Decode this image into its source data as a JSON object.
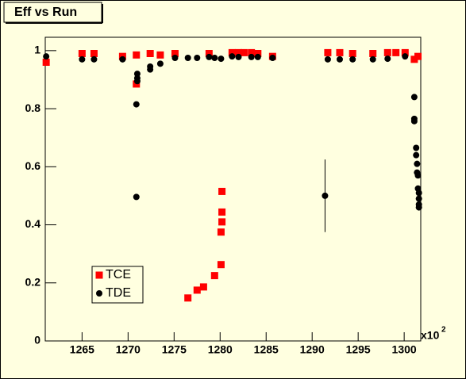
{
  "chart_data": {
    "type": "scatter",
    "title": "Eff vs Run",
    "x_label": "x10",
    "x_label_sup": "2",
    "xlim": [
      1261,
      1301.8
    ],
    "ylim": [
      0,
      1.046
    ],
    "xticks": [
      1265,
      1270,
      1275,
      1280,
      1285,
      1290,
      1295,
      1300
    ],
    "yticks": [
      0,
      0.2,
      0.4,
      0.6,
      0.8,
      1
    ],
    "legend": "lower-left",
    "series": [
      {
        "name": "TCE",
        "color": "#ff0000",
        "marker": "square",
        "x": [
          1261.1,
          1265.0,
          1266.3,
          1269.4,
          1270.9,
          1270.9,
          1272.4,
          1273.5,
          1275.1,
          1276.5,
          1277.5,
          1278.2,
          1278.8,
          1279.4,
          1280.1,
          1280.1,
          1280.2,
          1280.2,
          1280.2,
          1281.3,
          1282.0,
          1282.6,
          1283.4,
          1284.1,
          1285.7,
          1291.7,
          1293.0,
          1294.4,
          1296.6,
          1298.2,
          1299.1,
          1300.1,
          1301.1,
          1301.5
        ],
        "values": [
          0.96,
          0.99,
          0.99,
          0.98,
          0.985,
          0.885,
          0.99,
          0.985,
          0.99,
          0.148,
          0.175,
          0.186,
          0.99,
          0.225,
          0.263,
          0.375,
          0.41,
          0.444,
          0.515,
          0.993,
          0.993,
          0.993,
          0.993,
          0.99,
          0.98,
          0.993,
          0.993,
          0.99,
          0.99,
          0.993,
          0.993,
          0.993,
          0.97,
          0.98
        ]
      },
      {
        "name": "TDE",
        "color": "#000000",
        "marker": "circle",
        "x": [
          1261.1,
          1265.0,
          1266.3,
          1269.4,
          1270.9,
          1270.9,
          1271.0,
          1271.0,
          1271.0,
          1272.4,
          1272.4,
          1273.5,
          1275.1,
          1276.5,
          1277.5,
          1278.8,
          1279.4,
          1280.1,
          1281.3,
          1282.0,
          1283.4,
          1284.1,
          1285.7,
          1291.4,
          1291.7,
          1293.0,
          1294.4,
          1296.6,
          1298.2,
          1300.1,
          1301.1,
          1301.1,
          1301.1,
          1301.3,
          1301.3,
          1301.4,
          1301.4,
          1301.5,
          1301.5,
          1301.6,
          1301.6,
          1301.6,
          1301.6
        ],
        "values": [
          0.98,
          0.97,
          0.97,
          0.97,
          0.815,
          0.496,
          0.92,
          0.905,
          0.895,
          0.945,
          0.935,
          0.955,
          0.975,
          0.975,
          0.975,
          0.978,
          0.975,
          0.972,
          0.98,
          0.978,
          0.978,
          0.978,
          0.975,
          0.5,
          0.97,
          0.97,
          0.97,
          0.97,
          0.972,
          0.98,
          0.84,
          0.765,
          0.757,
          0.665,
          0.64,
          0.61,
          0.58,
          0.57,
          0.525,
          0.51,
          0.49,
          0.47,
          0.46
        ],
        "errors": [
          null,
          null,
          null,
          null,
          null,
          null,
          null,
          null,
          null,
          null,
          null,
          null,
          null,
          null,
          null,
          null,
          null,
          null,
          null,
          null,
          null,
          null,
          null,
          0.125,
          null,
          null,
          null,
          null,
          null,
          null,
          null,
          null,
          null,
          null,
          null,
          null,
          null,
          null,
          null,
          null,
          null,
          null,
          null
        ]
      }
    ]
  }
}
